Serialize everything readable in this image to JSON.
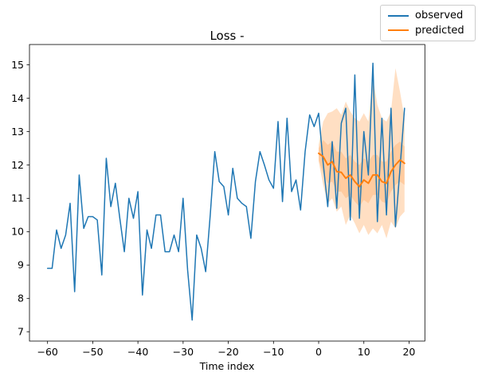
{
  "figure": {
    "title": "Loss -",
    "background_color": "#ffffff"
  },
  "legend": {
    "position": "top-right, above axes",
    "items": [
      {
        "label": "observed",
        "color": "#1f77b4"
      },
      {
        "label": "predicted",
        "color": "#ff7f0e"
      }
    ]
  },
  "chart_data": {
    "type": "line",
    "title": "Loss -",
    "xlabel": "Time index",
    "ylabel": "",
    "grid": false,
    "xlim": [
      -64,
      23.5
    ],
    "ylim": [
      6.72,
      15.61
    ],
    "x_ticks": [
      {
        "value": -60,
        "label": "−60"
      },
      {
        "value": -50,
        "label": "−50"
      },
      {
        "value": -40,
        "label": "−40"
      },
      {
        "value": -30,
        "label": "−30"
      },
      {
        "value": -20,
        "label": "−20"
      },
      {
        "value": -10,
        "label": "−10"
      },
      {
        "value": 0,
        "label": "0"
      },
      {
        "value": 10,
        "label": "10"
      },
      {
        "value": 20,
        "label": "20"
      }
    ],
    "y_ticks": [
      {
        "value": 7,
        "label": "7"
      },
      {
        "value": 8,
        "label": "8"
      },
      {
        "value": 9,
        "label": "9"
      },
      {
        "value": 10,
        "label": "10"
      },
      {
        "value": 11,
        "label": "11"
      },
      {
        "value": 12,
        "label": "12"
      },
      {
        "value": 13,
        "label": "13"
      },
      {
        "value": 14,
        "label": "14"
      },
      {
        "value": 15,
        "label": "15"
      }
    ],
    "series": [
      {
        "name": "observed",
        "color": "#1f77b4",
        "line_width": 1.5,
        "x_start": -60,
        "x_step": 1,
        "values": [
          8.9,
          8.9,
          10.05,
          9.5,
          9.9,
          10.85,
          8.2,
          11.7,
          10.1,
          10.45,
          10.45,
          10.35,
          8.7,
          12.2,
          10.75,
          11.45,
          10.4,
          9.4,
          11.0,
          10.4,
          11.2,
          8.1,
          10.05,
          9.5,
          10.5,
          10.5,
          9.4,
          9.4,
          9.9,
          9.4,
          11.0,
          8.85,
          7.35,
          9.9,
          9.5,
          8.8,
          10.5,
          12.4,
          11.5,
          11.35,
          10.5,
          11.9,
          11.0,
          10.85,
          10.75,
          9.8,
          11.5,
          12.4,
          12.0,
          11.55,
          11.3,
          13.3,
          10.9,
          13.4,
          11.2,
          11.55,
          10.65,
          12.4,
          13.5,
          13.15,
          13.55,
          12.05,
          10.75,
          12.7,
          10.7,
          13.25,
          13.7,
          10.35,
          14.7,
          10.4,
          13.0,
          11.7,
          15.05,
          10.3,
          13.4,
          10.5,
          13.7,
          10.15,
          11.9,
          13.7
        ]
      },
      {
        "name": "predicted",
        "color": "#ff7f0e",
        "line_width": 2,
        "x_start": 0,
        "x_step": 1,
        "values": [
          12.35,
          12.25,
          12.0,
          12.1,
          11.8,
          11.78,
          11.6,
          11.7,
          11.5,
          11.35,
          11.55,
          11.45,
          11.7,
          11.7,
          11.5,
          11.45,
          11.8,
          12.0,
          12.15,
          12.05
        ]
      }
    ],
    "bands": [
      {
        "name": "prediction-interval-outer",
        "color": "#ff7f0e",
        "opacity": 0.25,
        "x_start": 0,
        "x_step": 1,
        "upper": [
          12.6,
          13.3,
          13.55,
          13.6,
          13.7,
          13.5,
          13.9,
          13.6,
          13.4,
          13.3,
          13.55,
          13.3,
          14.6,
          13.8,
          13.4,
          13.3,
          13.6,
          14.9,
          14.2,
          13.4
        ],
        "lower": [
          12.1,
          11.4,
          10.85,
          11.0,
          10.6,
          10.75,
          10.2,
          10.5,
          10.25,
          9.95,
          10.2,
          9.9,
          10.1,
          9.95,
          10.2,
          9.8,
          10.3,
          10.1,
          10.45,
          10.6
        ]
      },
      {
        "name": "prediction-interval-inner",
        "color": "#ff7f0e",
        "opacity": 0.2,
        "x_start": 0,
        "x_step": 1,
        "upper": [
          12.5,
          12.75,
          12.6,
          12.7,
          12.4,
          12.4,
          12.2,
          12.3,
          12.1,
          12.0,
          12.2,
          12.1,
          12.3,
          12.3,
          12.1,
          12.1,
          12.4,
          12.6,
          12.7,
          12.55
        ],
        "lower": [
          12.15,
          11.75,
          11.45,
          11.5,
          11.2,
          11.2,
          11.0,
          11.1,
          10.9,
          10.75,
          10.95,
          10.85,
          11.1,
          11.1,
          10.9,
          10.85,
          11.2,
          11.4,
          11.5,
          11.4
        ]
      }
    ]
  }
}
